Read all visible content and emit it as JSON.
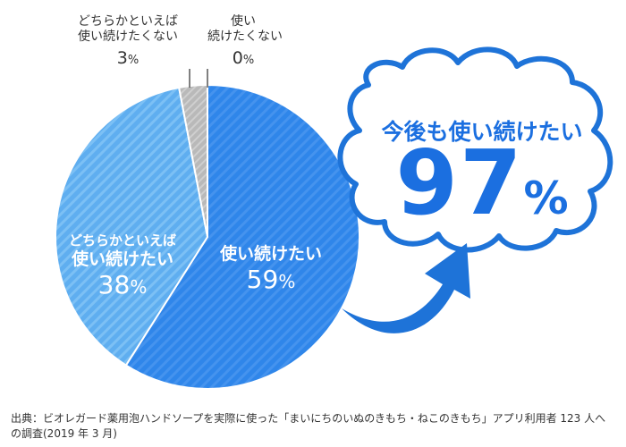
{
  "chart_data": {
    "type": "pie",
    "slices": [
      {
        "label": "使い続けたい",
        "value": 59,
        "color": "#2f86ea"
      },
      {
        "label_line1": "どちらかといえば",
        "label_line2": "使い続けたい",
        "value": 38,
        "color": "#61b3f2"
      },
      {
        "label_line1": "どちらかといえば",
        "label_line2": "使い続けたくない",
        "value": 3,
        "color": "#bfbfbf"
      },
      {
        "label_line1": "使い",
        "label_line2": "続けたくない",
        "value": 0,
        "color": "#bfbfbf"
      }
    ],
    "unit": "%"
  },
  "callout": {
    "title": "今後も使い続けたい",
    "value": "97",
    "unit": "%"
  },
  "source": "出典：ビオレガード薬用泡ハンドソープを実際に使った「まいにちのいぬのきもち・ねこのきもち」アプリ利用者 123 人への調査(2019 年 3 月)"
}
